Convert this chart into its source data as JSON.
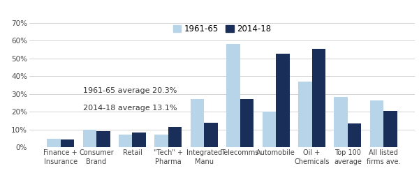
{
  "categories": [
    "Finance +\nInsurance",
    "Consumer\nBrand",
    "Retail",
    "\"Tech\" +\nPharma",
    "Integrated\nManu",
    "Telecomms",
    "Automobile",
    "Oil +\nChemicals",
    "Top 100\naverage",
    "All listed\nfirms ave."
  ],
  "values_1961": [
    0.05,
    0.1,
    0.07,
    0.07,
    0.27,
    0.58,
    0.2,
    0.37,
    0.285,
    0.265
  ],
  "values_2014": [
    0.045,
    0.09,
    0.085,
    0.115,
    0.14,
    0.27,
    0.525,
    0.555,
    0.135,
    0.205
  ],
  "color_1961": "#b8d4e8",
  "color_2014": "#1a2e5a",
  "ylim": [
    0,
    0.7
  ],
  "yticks": [
    0.0,
    0.1,
    0.2,
    0.3,
    0.4,
    0.5,
    0.6,
    0.7
  ],
  "ytick_labels": [
    "0%",
    "10%",
    "20%",
    "30%",
    "40%",
    "50%",
    "60%",
    "70%"
  ],
  "legend_labels": [
    "1961-65",
    "2014-18"
  ],
  "annotation1": "1961-65 average 20.3%",
  "annotation2": "2014-18 average 13.1%",
  "bar_width": 0.38,
  "bg_color": "#ffffff"
}
